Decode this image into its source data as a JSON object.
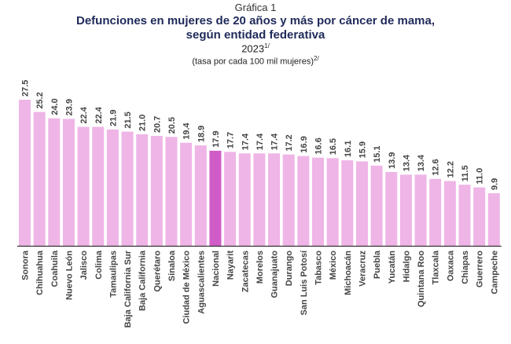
{
  "header": {
    "kicker": "Gráfica 1",
    "title_line1": "Defunciones en mujeres de 20 años y más por cáncer de mama,",
    "title_line2": "según entidad federativa",
    "year": "2023",
    "year_note": "1/",
    "unit": "(tasa por cada 100 mil mujeres)",
    "unit_note": "2/"
  },
  "colors": {
    "bar": "#efb5e6",
    "highlight": "#d05cc8",
    "axis": "#333333",
    "label": "#444444"
  },
  "chart_data": {
    "type": "bar",
    "title": "Defunciones en mujeres de 20 años y más por cáncer de mama, según entidad federativa 2023",
    "subtitle": "(tasa por cada 100 mil mujeres)",
    "xlabel": "",
    "ylabel": "",
    "ylim": [
      0,
      27.5
    ],
    "grid": false,
    "legend": "none",
    "highlight_category": "Nacional",
    "categories": [
      "Sonora",
      "Chihuahua",
      "Coahuila",
      "Nuevo León",
      "Jalisco",
      "Colima",
      "Tamaulipas",
      "Baja California Sur",
      "Baja California",
      "Querétaro",
      "Sinaloa",
      "Ciudad de México",
      "Aguascalientes",
      "Nacional",
      "Nayarit",
      "Zacatecas",
      "Morelos",
      "Guanajuato",
      "Durango",
      "San Luis Potosí",
      "Tabasco",
      "México",
      "Michoacán",
      "Veracruz",
      "Puebla",
      "Yucatán",
      "Hidalgo",
      "Quintana Roo",
      "Tlaxcala",
      "Oaxaca",
      "Chiapas",
      "Guerrero",
      "Campeche"
    ],
    "values": [
      27.5,
      25.2,
      24.0,
      23.9,
      22.4,
      22.4,
      21.9,
      21.5,
      21.0,
      20.7,
      20.5,
      19.4,
      18.9,
      17.9,
      17.7,
      17.4,
      17.4,
      17.4,
      17.2,
      16.9,
      16.6,
      16.5,
      16.1,
      15.9,
      15.1,
      13.9,
      13.4,
      13.4,
      12.6,
      12.2,
      11.5,
      11.0,
      9.9
    ],
    "value_labels": [
      "27.5",
      "25.2",
      "24.0",
      "23.9",
      "22.4",
      "22.4",
      "21.9",
      "21.5",
      "21.0",
      "20.7",
      "20.5",
      "19.4",
      "18.9",
      "17.9",
      "17.7",
      "17.4",
      "17.4",
      "17.4",
      "17.2",
      "16.9",
      "16.6",
      "16.5",
      "16.1",
      "15.9",
      "15.1",
      "13.9",
      "13.4",
      "13.4",
      "12.6",
      "12.2",
      "11.5",
      "11.0",
      "9.9"
    ]
  }
}
